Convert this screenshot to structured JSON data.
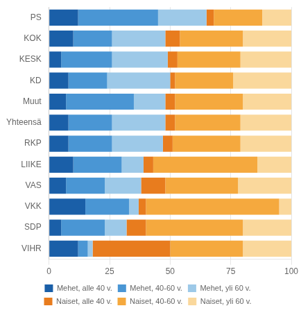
{
  "chart_data": {
    "type": "bar",
    "orientation": "horizontal",
    "stacked": true,
    "categories": [
      "PS",
      "KOK",
      "KESK",
      "KD",
      "Muut",
      "Yhteensä",
      "RKP",
      "LIIKE",
      "VAS",
      "VKK",
      "SDP",
      "VIHR"
    ],
    "series": [
      {
        "name": "Mehet, alle 40 v.",
        "color": "#1a5fa8",
        "values": [
          12,
          10,
          5,
          8,
          7,
          8,
          8,
          10,
          7,
          15,
          5,
          12
        ]
      },
      {
        "name": "Mehet, 40-60 v.",
        "color": "#4a96d4",
        "values": [
          33,
          16,
          21,
          16,
          28,
          18,
          18,
          20,
          16,
          18,
          18,
          4
        ]
      },
      {
        "name": "Mehet, yli 60 v.",
        "color": "#9dc9e8",
        "values": [
          20,
          22,
          23,
          26,
          13,
          22,
          21,
          9,
          15,
          4,
          9,
          2
        ]
      },
      {
        "name": "Naiset, alle 40 v.",
        "color": "#e87c1e",
        "values": [
          3,
          6,
          4,
          2,
          4,
          4,
          4,
          4,
          10,
          3,
          8,
          32
        ]
      },
      {
        "name": "Naiset, 40-60 v.",
        "color": "#f5a93e",
        "values": [
          20,
          26,
          26,
          24,
          28,
          27,
          28,
          43,
          30,
          55,
          40,
          30
        ]
      },
      {
        "name": "Naiset, yli 60 v.",
        "color": "#fad89c",
        "values": [
          12,
          20,
          21,
          24,
          20,
          21,
          21,
          14,
          22,
          5,
          20,
          20
        ]
      }
    ],
    "xlim": [
      0,
      100
    ],
    "xticks": [
      0,
      25,
      50,
      75,
      100
    ],
    "grid": true,
    "legend": "bottom"
  }
}
